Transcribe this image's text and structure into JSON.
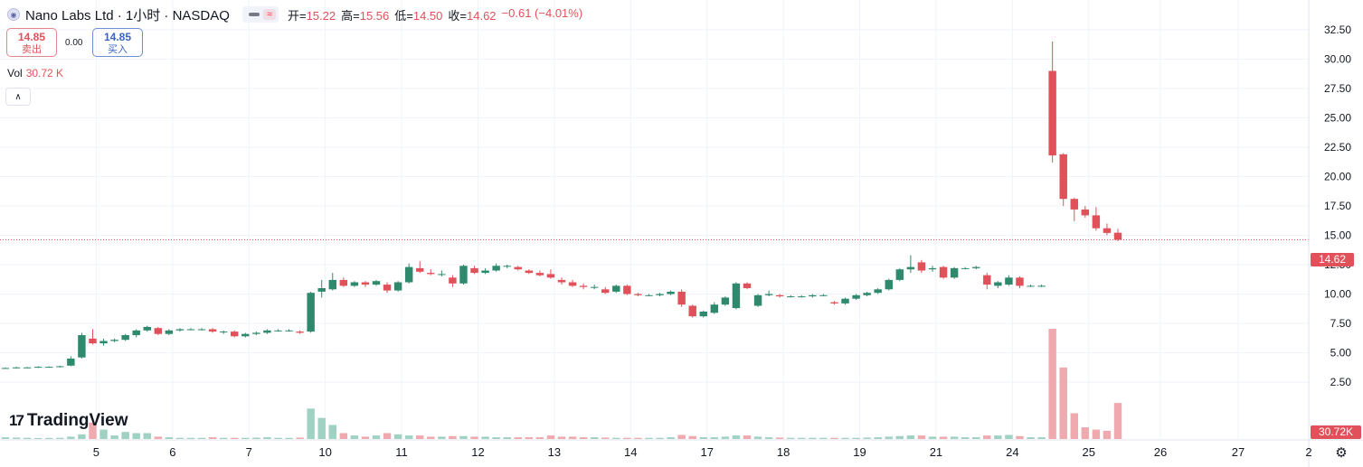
{
  "header": {
    "title": "Nano Labs Ltd · 1小时 · NASDAQ",
    "ohlc": [
      {
        "label": "开=",
        "value": "15.22"
      },
      {
        "label": "高=",
        "value": "15.56"
      },
      {
        "label": "低=",
        "value": "14.50"
      },
      {
        "label": "收=",
        "value": "14.62"
      },
      {
        "label": "",
        "value": "−0.61 (−4.01%)"
      }
    ]
  },
  "trade": {
    "sell_price": "14.85",
    "sell_label": "卖出",
    "spread": "0.00",
    "buy_price": "14.85",
    "buy_label": "买入"
  },
  "volume": {
    "label": "Vol",
    "value": "30.72 K"
  },
  "logo_text": "TradingView",
  "colors": {
    "up": "#2f8a6d",
    "down": "#e0515a",
    "vol_up": "#9fd2c2",
    "vol_down": "#f0a9ae",
    "grid": "#f0f3fa",
    "text": "#131722"
  },
  "chart_data": {
    "type": "candlestick",
    "title": "Nano Labs Ltd · 1小时 · NASDAQ",
    "y_ticks": [
      "32.50",
      "30.00",
      "27.50",
      "25.00",
      "22.50",
      "20.00",
      "17.50",
      "15.00",
      "12.50",
      "10.00",
      "7.50",
      "5.00",
      "2.50"
    ],
    "ylim": [
      0,
      33
    ],
    "x_tick_labels": [
      "5",
      "6",
      "7",
      "10",
      "11",
      "12",
      "13",
      "14",
      "17",
      "18",
      "19",
      "21",
      "24",
      "25",
      "26",
      "27",
      "2"
    ],
    "last_price": "14.62",
    "last_volume": "30.72K",
    "legend": "none",
    "grid": true,
    "candles": [
      [
        3.7,
        3.75,
        3.65,
        3.7
      ],
      [
        3.7,
        3.8,
        3.65,
        3.75
      ],
      [
        3.75,
        3.8,
        3.7,
        3.75
      ],
      [
        3.75,
        3.85,
        3.7,
        3.8
      ],
      [
        3.8,
        3.85,
        3.75,
        3.8
      ],
      [
        3.8,
        3.9,
        3.75,
        3.85
      ],
      [
        3.9,
        4.7,
        3.85,
        4.5
      ],
      [
        4.6,
        6.7,
        4.5,
        6.5
      ],
      [
        6.2,
        7.0,
        5.7,
        5.8
      ],
      [
        5.8,
        6.2,
        5.6,
        6.0
      ],
      [
        6.0,
        6.2,
        5.9,
        6.1
      ],
      [
        6.1,
        6.6,
        6.0,
        6.5
      ],
      [
        6.5,
        7.0,
        6.3,
        6.9
      ],
      [
        6.9,
        7.3,
        6.8,
        7.2
      ],
      [
        7.1,
        7.2,
        6.5,
        6.6
      ],
      [
        6.6,
        7.0,
        6.5,
        6.9
      ],
      [
        6.9,
        7.1,
        6.8,
        7.0
      ],
      [
        7.0,
        7.1,
        6.9,
        7.0
      ],
      [
        7.0,
        7.1,
        6.9,
        7.0
      ],
      [
        7.0,
        7.1,
        6.7,
        6.8
      ],
      [
        6.8,
        6.9,
        6.6,
        6.8
      ],
      [
        6.8,
        6.9,
        6.3,
        6.4
      ],
      [
        6.4,
        6.7,
        6.3,
        6.6
      ],
      [
        6.6,
        6.8,
        6.5,
        6.7
      ],
      [
        6.7,
        7.0,
        6.6,
        6.9
      ],
      [
        6.9,
        7.0,
        6.8,
        6.9
      ],
      [
        6.9,
        7.0,
        6.8,
        6.9
      ],
      [
        6.8,
        6.9,
        6.6,
        6.7
      ],
      [
        6.8,
        10.2,
        6.7,
        10.1
      ],
      [
        10.2,
        11.2,
        9.7,
        10.5
      ],
      [
        10.4,
        11.8,
        10.3,
        11.2
      ],
      [
        11.2,
        11.4,
        10.6,
        10.7
      ],
      [
        10.7,
        11.1,
        10.6,
        11.0
      ],
      [
        11.0,
        11.1,
        10.6,
        10.8
      ],
      [
        10.8,
        11.2,
        10.7,
        11.1
      ],
      [
        10.8,
        11.0,
        10.1,
        10.3
      ],
      [
        10.3,
        11.1,
        10.2,
        11.0
      ],
      [
        11.0,
        12.6,
        10.9,
        12.3
      ],
      [
        12.2,
        12.8,
        11.8,
        11.9
      ],
      [
        11.8,
        12.1,
        11.6,
        11.7
      ],
      [
        11.7,
        12.0,
        11.5,
        11.7
      ],
      [
        11.4,
        11.6,
        10.6,
        10.9
      ],
      [
        10.9,
        12.5,
        10.8,
        12.4
      ],
      [
        12.2,
        12.4,
        11.7,
        11.8
      ],
      [
        11.8,
        12.2,
        11.7,
        12.0
      ],
      [
        12.0,
        12.6,
        11.9,
        12.4
      ],
      [
        12.4,
        12.5,
        12.2,
        12.4
      ],
      [
        12.3,
        12.4,
        12.0,
        12.1
      ],
      [
        12.0,
        12.1,
        11.7,
        11.8
      ],
      [
        11.8,
        12.0,
        11.5,
        11.6
      ],
      [
        11.7,
        12.1,
        11.3,
        11.4
      ],
      [
        11.2,
        11.4,
        10.8,
        11.0
      ],
      [
        11.0,
        11.2,
        10.6,
        10.7
      ],
      [
        10.7,
        10.9,
        10.4,
        10.6
      ],
      [
        10.6,
        10.8,
        10.4,
        10.6
      ],
      [
        10.4,
        10.6,
        10.0,
        10.1
      ],
      [
        10.2,
        10.8,
        10.1,
        10.7
      ],
      [
        10.7,
        10.8,
        9.9,
        10.0
      ],
      [
        10.0,
        10.1,
        9.8,
        9.9
      ],
      [
        9.9,
        10.0,
        9.8,
        9.9
      ],
      [
        9.9,
        10.1,
        9.8,
        10.0
      ],
      [
        10.0,
        10.3,
        9.9,
        10.2
      ],
      [
        10.2,
        10.4,
        8.9,
        9.1
      ],
      [
        9.0,
        9.1,
        8.0,
        8.1
      ],
      [
        8.1,
        8.6,
        8.0,
        8.5
      ],
      [
        8.4,
        9.3,
        8.3,
        9.1
      ],
      [
        9.1,
        9.8,
        9.0,
        9.7
      ],
      [
        8.8,
        11.0,
        8.7,
        10.9
      ],
      [
        10.9,
        11.0,
        10.4,
        10.5
      ],
      [
        9.0,
        10.0,
        8.9,
        9.9
      ],
      [
        9.9,
        10.3,
        9.8,
        10.0
      ],
      [
        9.9,
        10.0,
        9.7,
        9.8
      ],
      [
        9.8,
        9.9,
        9.7,
        9.8
      ],
      [
        9.8,
        9.9,
        9.7,
        9.8
      ],
      [
        9.8,
        10.0,
        9.7,
        9.9
      ],
      [
        9.9,
        10.0,
        9.8,
        9.9
      ],
      [
        9.3,
        9.4,
        9.1,
        9.2
      ],
      [
        9.2,
        9.7,
        9.1,
        9.6
      ],
      [
        9.6,
        10.0,
        9.5,
        9.9
      ],
      [
        9.9,
        10.2,
        9.8,
        10.1
      ],
      [
        10.1,
        10.5,
        10.0,
        10.4
      ],
      [
        10.4,
        11.3,
        10.3,
        11.2
      ],
      [
        11.2,
        12.2,
        11.1,
        12.1
      ],
      [
        12.1,
        13.3,
        11.8,
        12.3
      ],
      [
        12.7,
        12.9,
        11.8,
        12.0
      ],
      [
        12.1,
        12.4,
        11.9,
        12.2
      ],
      [
        12.3,
        12.4,
        11.3,
        11.4
      ],
      [
        11.4,
        12.3,
        11.3,
        12.2
      ],
      [
        12.2,
        12.3,
        12.1,
        12.2
      ],
      [
        12.2,
        12.4,
        12.1,
        12.3
      ],
      [
        11.6,
        11.8,
        10.4,
        10.8
      ],
      [
        10.7,
        11.1,
        10.5,
        11.0
      ],
      [
        10.8,
        11.6,
        10.7,
        11.4
      ],
      [
        11.4,
        11.5,
        10.5,
        10.7
      ],
      [
        10.7,
        10.8,
        10.6,
        10.7
      ],
      [
        10.7,
        10.8,
        10.6,
        10.7
      ],
      [
        29.0,
        31.5,
        21.2,
        21.8
      ],
      [
        21.9,
        22.0,
        17.5,
        18.1
      ],
      [
        18.1,
        18.2,
        16.2,
        17.2
      ],
      [
        17.2,
        17.5,
        16.5,
        16.7
      ],
      [
        16.7,
        17.4,
        15.4,
        15.6
      ],
      [
        15.6,
        16.0,
        15.0,
        15.2
      ],
      [
        15.22,
        15.56,
        14.5,
        14.62
      ]
    ],
    "volumes_k": [
      1.5,
      1.2,
      1.0,
      0.8,
      0.9,
      1.0,
      2.0,
      4.0,
      14.0,
      8.0,
      3.0,
      6.0,
      5.0,
      5.0,
      2.0,
      1.5,
      1.0,
      1.0,
      1.0,
      1.5,
      1.0,
      1.0,
      1.0,
      1.2,
      1.5,
      1.0,
      1.0,
      1.2,
      26.0,
      18.0,
      12.0,
      5.0,
      3.0,
      2.0,
      3.0,
      5.0,
      4.0,
      3.0,
      3.0,
      2.0,
      2.0,
      2.5,
      2.5,
      2.0,
      2.0,
      1.5,
      1.5,
      1.5,
      1.5,
      1.5,
      3.0,
      2.0,
      2.0,
      1.5,
      1.5,
      1.2,
      1.0,
      1.0,
      1.0,
      1.0,
      1.0,
      1.5,
      3.5,
      2.5,
      1.5,
      1.5,
      2.0,
      3.0,
      3.0,
      2.0,
      1.5,
      1.2,
      1.0,
      1.0,
      1.0,
      1.0,
      1.0,
      1.0,
      1.0,
      1.2,
      1.5,
      2.0,
      2.5,
      3.0,
      3.0,
      2.0,
      2.0,
      2.0,
      1.5,
      1.5,
      3.0,
      3.0,
      3.5,
      2.5,
      1.5,
      1.5,
      94.0,
      61.0,
      22.0,
      10.0,
      8.0,
      7.0,
      30.72
    ]
  }
}
